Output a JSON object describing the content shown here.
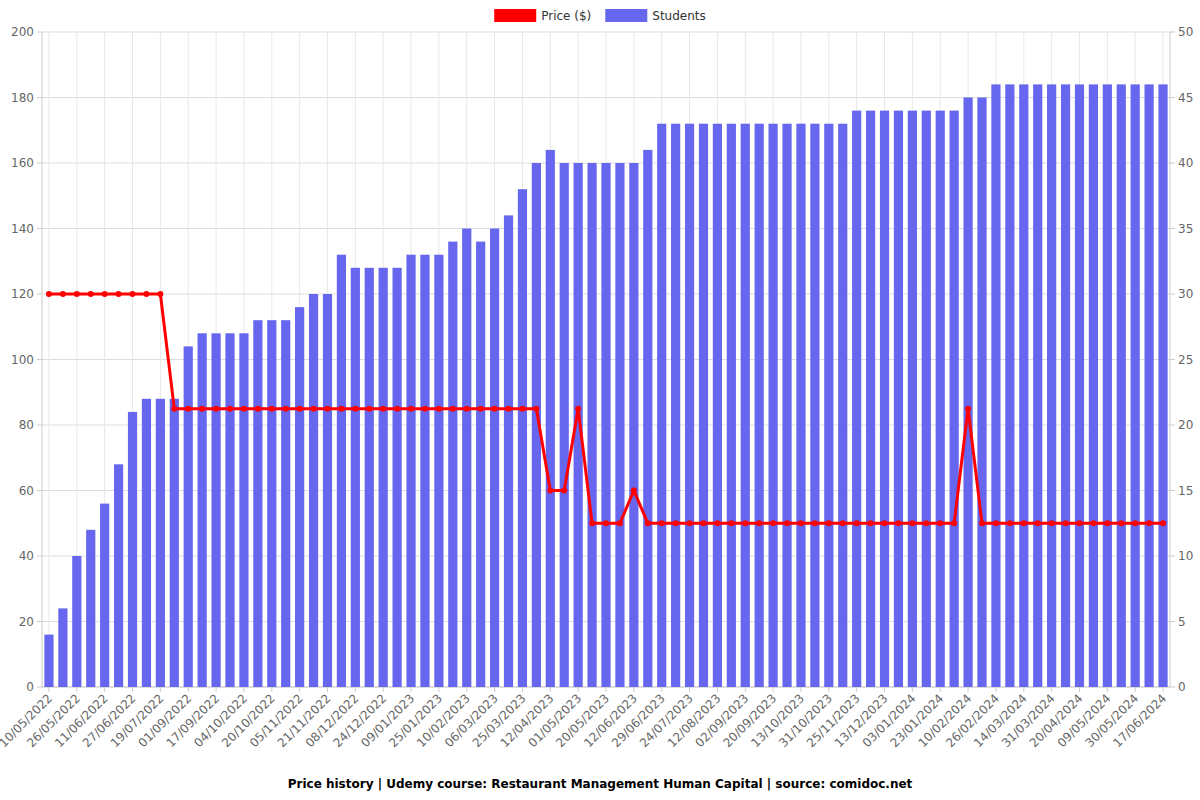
{
  "chart_data": {
    "type": "bar",
    "title": "Price history | Udemy course: Restaurant Management Human Capital | source: comidoc.net",
    "categories": [
      "10/05/2022",
      null,
      "26/05/2022",
      null,
      "11/06/2022",
      null,
      "27/06/2022",
      null,
      "19/07/2022",
      null,
      "01/09/2022",
      null,
      "17/09/2022",
      null,
      "04/10/2022",
      null,
      "20/10/2022",
      null,
      "05/11/2022",
      null,
      "21/11/2022",
      null,
      "08/12/2022",
      null,
      "24/12/2022",
      null,
      "09/01/2023",
      null,
      "25/01/2023",
      null,
      "10/02/2023",
      null,
      "06/03/2023",
      null,
      "25/03/2023",
      null,
      "12/04/2023",
      null,
      "01/05/2023",
      null,
      "20/05/2023",
      null,
      "12/06/2023",
      null,
      "29/06/2023",
      null,
      "24/07/2023",
      null,
      "12/08/2023",
      null,
      "02/09/2023",
      null,
      "20/09/2023",
      null,
      "13/10/2023",
      null,
      "31/10/2023",
      null,
      "25/11/2023",
      null,
      "13/12/2023",
      null,
      "03/01/2024",
      null,
      "23/01/2024",
      null,
      "10/02/2024",
      null,
      "26/02/2024",
      null,
      "14/03/2024",
      null,
      "31/03/2024",
      null,
      "20/04/2024",
      null,
      "09/05/2024",
      null,
      "30/05/2024",
      null,
      "17/06/2024"
    ],
    "series": [
      {
        "name": "Price ($)",
        "type": "line",
        "color": "#ff0000",
        "marker": "circle",
        "values": [
          120,
          120,
          120,
          120,
          120,
          120,
          120,
          120,
          120,
          85,
          85,
          85,
          85,
          85,
          85,
          85,
          85,
          85,
          85,
          85,
          85,
          85,
          85,
          85,
          85,
          85,
          85,
          85,
          85,
          85,
          85,
          85,
          85,
          85,
          85,
          85,
          60,
          60,
          85,
          50,
          50,
          50,
          60,
          50,
          50,
          50,
          50,
          50,
          50,
          50,
          50,
          50,
          50,
          50,
          50,
          50,
          50,
          50,
          50,
          50,
          50,
          50,
          50,
          50,
          50,
          50,
          85,
          50,
          50,
          50,
          50,
          50,
          50,
          50,
          50,
          50,
          50,
          50,
          50,
          50,
          50
        ]
      },
      {
        "name": "Students",
        "type": "bar",
        "color": "#6666ee",
        "axis": "y2",
        "values": [
          4,
          6,
          10,
          12,
          14,
          17,
          21,
          22,
          22,
          22,
          26,
          27,
          27,
          27,
          27,
          28,
          28,
          28,
          29,
          30,
          30,
          33,
          32,
          32,
          32,
          32,
          33,
          33,
          33,
          34,
          35,
          34,
          35,
          36,
          38,
          40,
          41,
          40,
          40,
          40,
          40,
          40,
          40,
          41,
          43,
          43,
          43,
          43,
          43,
          43,
          43,
          43,
          43,
          43,
          43,
          43,
          43,
          43,
          44,
          44,
          44,
          44,
          44,
          44,
          44,
          44,
          45,
          45,
          46,
          46,
          46,
          46,
          46,
          46,
          46,
          46,
          46,
          46,
          46,
          46,
          46
        ]
      }
    ],
    "ylim": [
      0,
      200
    ],
    "yticks": [
      0,
      20,
      40,
      60,
      80,
      100,
      120,
      140,
      160,
      180,
      200
    ],
    "y2lim": [
      0,
      50
    ],
    "y2ticks": [
      0,
      5,
      10,
      15,
      20,
      25,
      30,
      35,
      40,
      45,
      50
    ],
    "grid": true,
    "legend": "top"
  }
}
